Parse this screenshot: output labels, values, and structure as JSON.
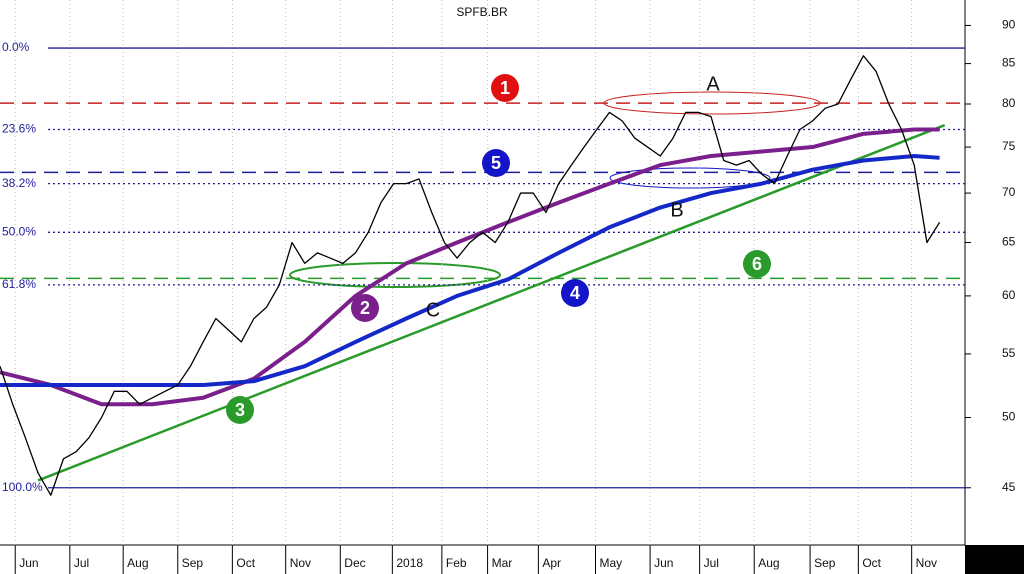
{
  "chart_data": {
    "type": "line",
    "title": "SPFB.BR",
    "ylog": true,
    "ylim": [
      41.3,
      93.5
    ],
    "yticks": [
      45,
      50,
      55,
      60,
      65,
      70,
      75,
      80,
      85,
      90
    ],
    "xlim": [
      0,
      76
    ],
    "xticks": [
      {
        "value": 1.2,
        "label": "Jun"
      },
      {
        "value": 5.5,
        "label": "Jul"
      },
      {
        "value": 9.7,
        "label": "Aug"
      },
      {
        "value": 14,
        "label": "Sep"
      },
      {
        "value": 18.3,
        "label": "Oct"
      },
      {
        "value": 22.5,
        "label": "Nov"
      },
      {
        "value": 26.8,
        "label": "Dec"
      },
      {
        "value": 30.9,
        "label": "2018"
      },
      {
        "value": 34.8,
        "label": "Feb"
      },
      {
        "value": 38.4,
        "label": "Mar"
      },
      {
        "value": 42.4,
        "label": "Apr"
      },
      {
        "value": 46.9,
        "label": "May"
      },
      {
        "value": 51.2,
        "label": "Jun"
      },
      {
        "value": 55.1,
        "label": "Jul"
      },
      {
        "value": 59.4,
        "label": "Aug"
      },
      {
        "value": 63.8,
        "label": "Sep"
      },
      {
        "value": 67.6,
        "label": "Oct"
      },
      {
        "value": 71.8,
        "label": "Nov"
      }
    ],
    "grid": true,
    "x": [
      0,
      1,
      2,
      3,
      4,
      5,
      6,
      7,
      8,
      9,
      10,
      11,
      12,
      13,
      14,
      15,
      16,
      17,
      18,
      19,
      20,
      21,
      22,
      23,
      24,
      25,
      26,
      27,
      28,
      29,
      30,
      31,
      32,
      33,
      34,
      35,
      36,
      37,
      38,
      39,
      40,
      41,
      42,
      43,
      44,
      45,
      46,
      47,
      48,
      49,
      50,
      51,
      52,
      53,
      54,
      55,
      56,
      57,
      58,
      59,
      60,
      61,
      62,
      63,
      64,
      65,
      66,
      67,
      68,
      69,
      70,
      71,
      72,
      73,
      74
    ],
    "series": [
      {
        "color": "#000000",
        "values": [
          54,
          51,
          48.5,
          46,
          44.5,
          47,
          47.5,
          48.5,
          50,
          52,
          52,
          51,
          51.5,
          52,
          52.5,
          54,
          56,
          58,
          57,
          56,
          58,
          59,
          61,
          65,
          63,
          64,
          63.5,
          63,
          64,
          66,
          69,
          71,
          71,
          71.5,
          68,
          65,
          63.5,
          65,
          66,
          65,
          67,
          70,
          70,
          68,
          71,
          73,
          75,
          77,
          79,
          78,
          76,
          75,
          74,
          76,
          79,
          79,
          78.5,
          73.5,
          73,
          73.5,
          72,
          71,
          74,
          77,
          78,
          79.5,
          80,
          83,
          86,
          84,
          80,
          77,
          73,
          65,
          67
        ]
      },
      {
        "color": "#7a1f8c",
        "x": [
          0,
          4,
          8,
          12,
          16,
          20,
          24,
          28,
          32,
          36,
          40,
          44,
          48,
          52,
          56,
          60,
          64,
          68,
          72,
          74
        ],
        "values": [
          53.5,
          52.5,
          51,
          51,
          51.5,
          53,
          56,
          60,
          63,
          65,
          67,
          69,
          71,
          73,
          74,
          74.5,
          75,
          76.5,
          77,
          77
        ]
      },
      {
        "color": "#1428c8",
        "x": [
          0,
          8,
          16,
          20,
          24,
          28,
          32,
          36,
          40,
          44,
          48,
          52,
          56,
          60,
          64,
          68,
          72,
          74
        ],
        "values": [
          52.5,
          52.5,
          52.5,
          52.8,
          54,
          56,
          58,
          60,
          61.5,
          64,
          66.5,
          68.5,
          70,
          71,
          72.5,
          73.5,
          74,
          73.8
        ]
      }
    ],
    "trendlines": [
      {
        "color": "#2a9a2a",
        "x": [
          3,
          74.4
        ],
        "values": [
          45.5,
          77.5
        ]
      }
    ],
    "levels": [
      {
        "value": 87,
        "label": "0.0%",
        "color": "#1f1f99",
        "dash": "solid"
      },
      {
        "value": 77,
        "label": "23.6%",
        "color": "#1f1f99",
        "dash": "dotted"
      },
      {
        "value": 71,
        "label": "38.2%",
        "color": "#1f1f99",
        "dash": "dotted"
      },
      {
        "value": 66,
        "label": "50.0%",
        "color": "#1f1f99",
        "dash": "dotted"
      },
      {
        "value": 61,
        "label": "61.8%",
        "color": "#1f1f99",
        "dash": "dotted"
      },
      {
        "value": 45,
        "label": "100.0%",
        "color": "#1f1f99",
        "dash": "solid"
      }
    ],
    "lines": [
      {
        "value": 80.1,
        "color": "#c82020"
      },
      {
        "value": 72.2,
        "color": "#1f1f99"
      },
      {
        "value": 61.6,
        "color": "#2a9a2a"
      }
    ],
    "annotations": [
      {
        "text": "1",
        "color": "#e01010",
        "shape": "circle"
      },
      {
        "text": "5",
        "color": "#1414c8",
        "shape": "circle"
      },
      {
        "text": "2",
        "color": "#7a1f8c",
        "shape": "circle"
      },
      {
        "text": "4",
        "color": "#1414c8",
        "shape": "circle"
      },
      {
        "text": "3",
        "color": "#2a9a2a",
        "shape": "circle"
      },
      {
        "text": "6",
        "color": "#2a9a2a",
        "shape": "circle"
      },
      {
        "text": "A",
        "color": "#c82020",
        "shape": "letter"
      },
      {
        "text": "B",
        "color": "#1414c8",
        "shape": "letter"
      },
      {
        "text": "C",
        "color": "#2a9a2a",
        "shape": "letter"
      }
    ]
  }
}
